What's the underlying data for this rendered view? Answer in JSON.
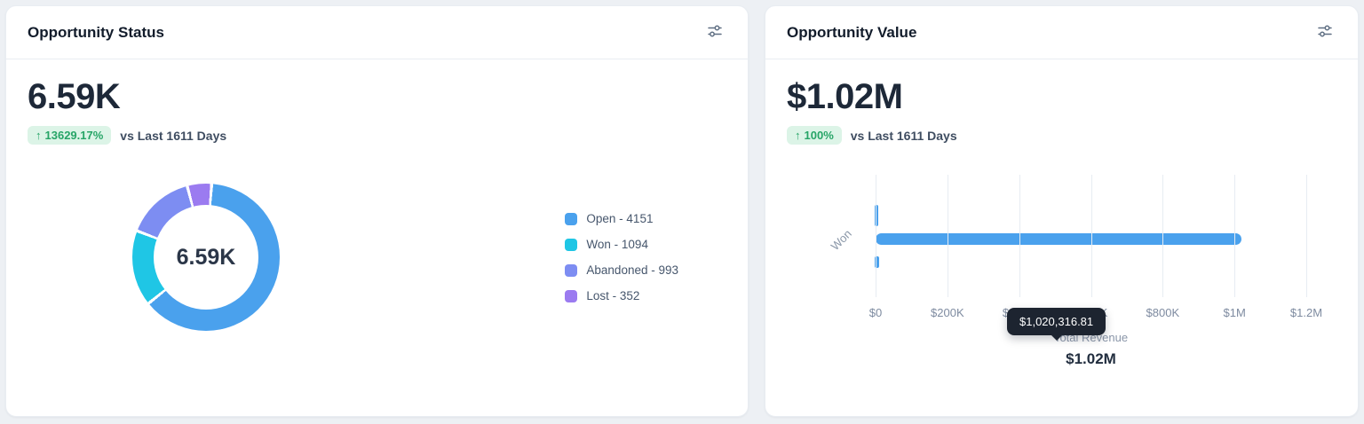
{
  "cards": {
    "status": {
      "title": "Opportunity Status",
      "metric": "6.59K",
      "badge_arrow": "↑",
      "badge_pct": "13629.17%",
      "comparison": "vs Last 1611 Days",
      "legend": [
        {
          "label": "Open - 4151",
          "color": "#4aa1ed"
        },
        {
          "label": "Won - 1094",
          "color": "#1fc6e5"
        },
        {
          "label": "Abandoned - 993",
          "color": "#7d8df2"
        },
        {
          "label": "Lost - 352",
          "color": "#9b7bf0"
        }
      ]
    },
    "value": {
      "title": "Opportunity Value",
      "metric": "$1.02M",
      "badge_arrow": "↑",
      "badge_pct": "100%",
      "comparison": "vs Last 1611 Days"
    }
  },
  "chart_data": [
    {
      "type": "pie",
      "donut": true,
      "title": "Opportunity Status",
      "categories": [
        "Open",
        "Won",
        "Abandoned",
        "Lost"
      ],
      "values": [
        4151,
        1094,
        993,
        352
      ],
      "colors": [
        "#4aa1ed",
        "#1fc6e5",
        "#7d8df2",
        "#9b7bf0"
      ],
      "draw_order": [
        3,
        0,
        1,
        2
      ],
      "center_label": "6.59K",
      "legend_position": "right"
    },
    {
      "type": "bar",
      "orientation": "horizontal",
      "title": "Opportunity Value",
      "categories": [
        "Won"
      ],
      "values": [
        1020316.81
      ],
      "bar_color": "#4aa1ed",
      "xlabel": "Total Revenue",
      "xlim": [
        0,
        1200000
      ],
      "x_tick_labels": [
        "$0",
        "$200K",
        "$400K",
        "$600K",
        "$800K",
        "$1M",
        "$1.2M"
      ],
      "grid": true,
      "tooltip": "$1,020,316.81",
      "total_label": "$1.02M"
    }
  ]
}
